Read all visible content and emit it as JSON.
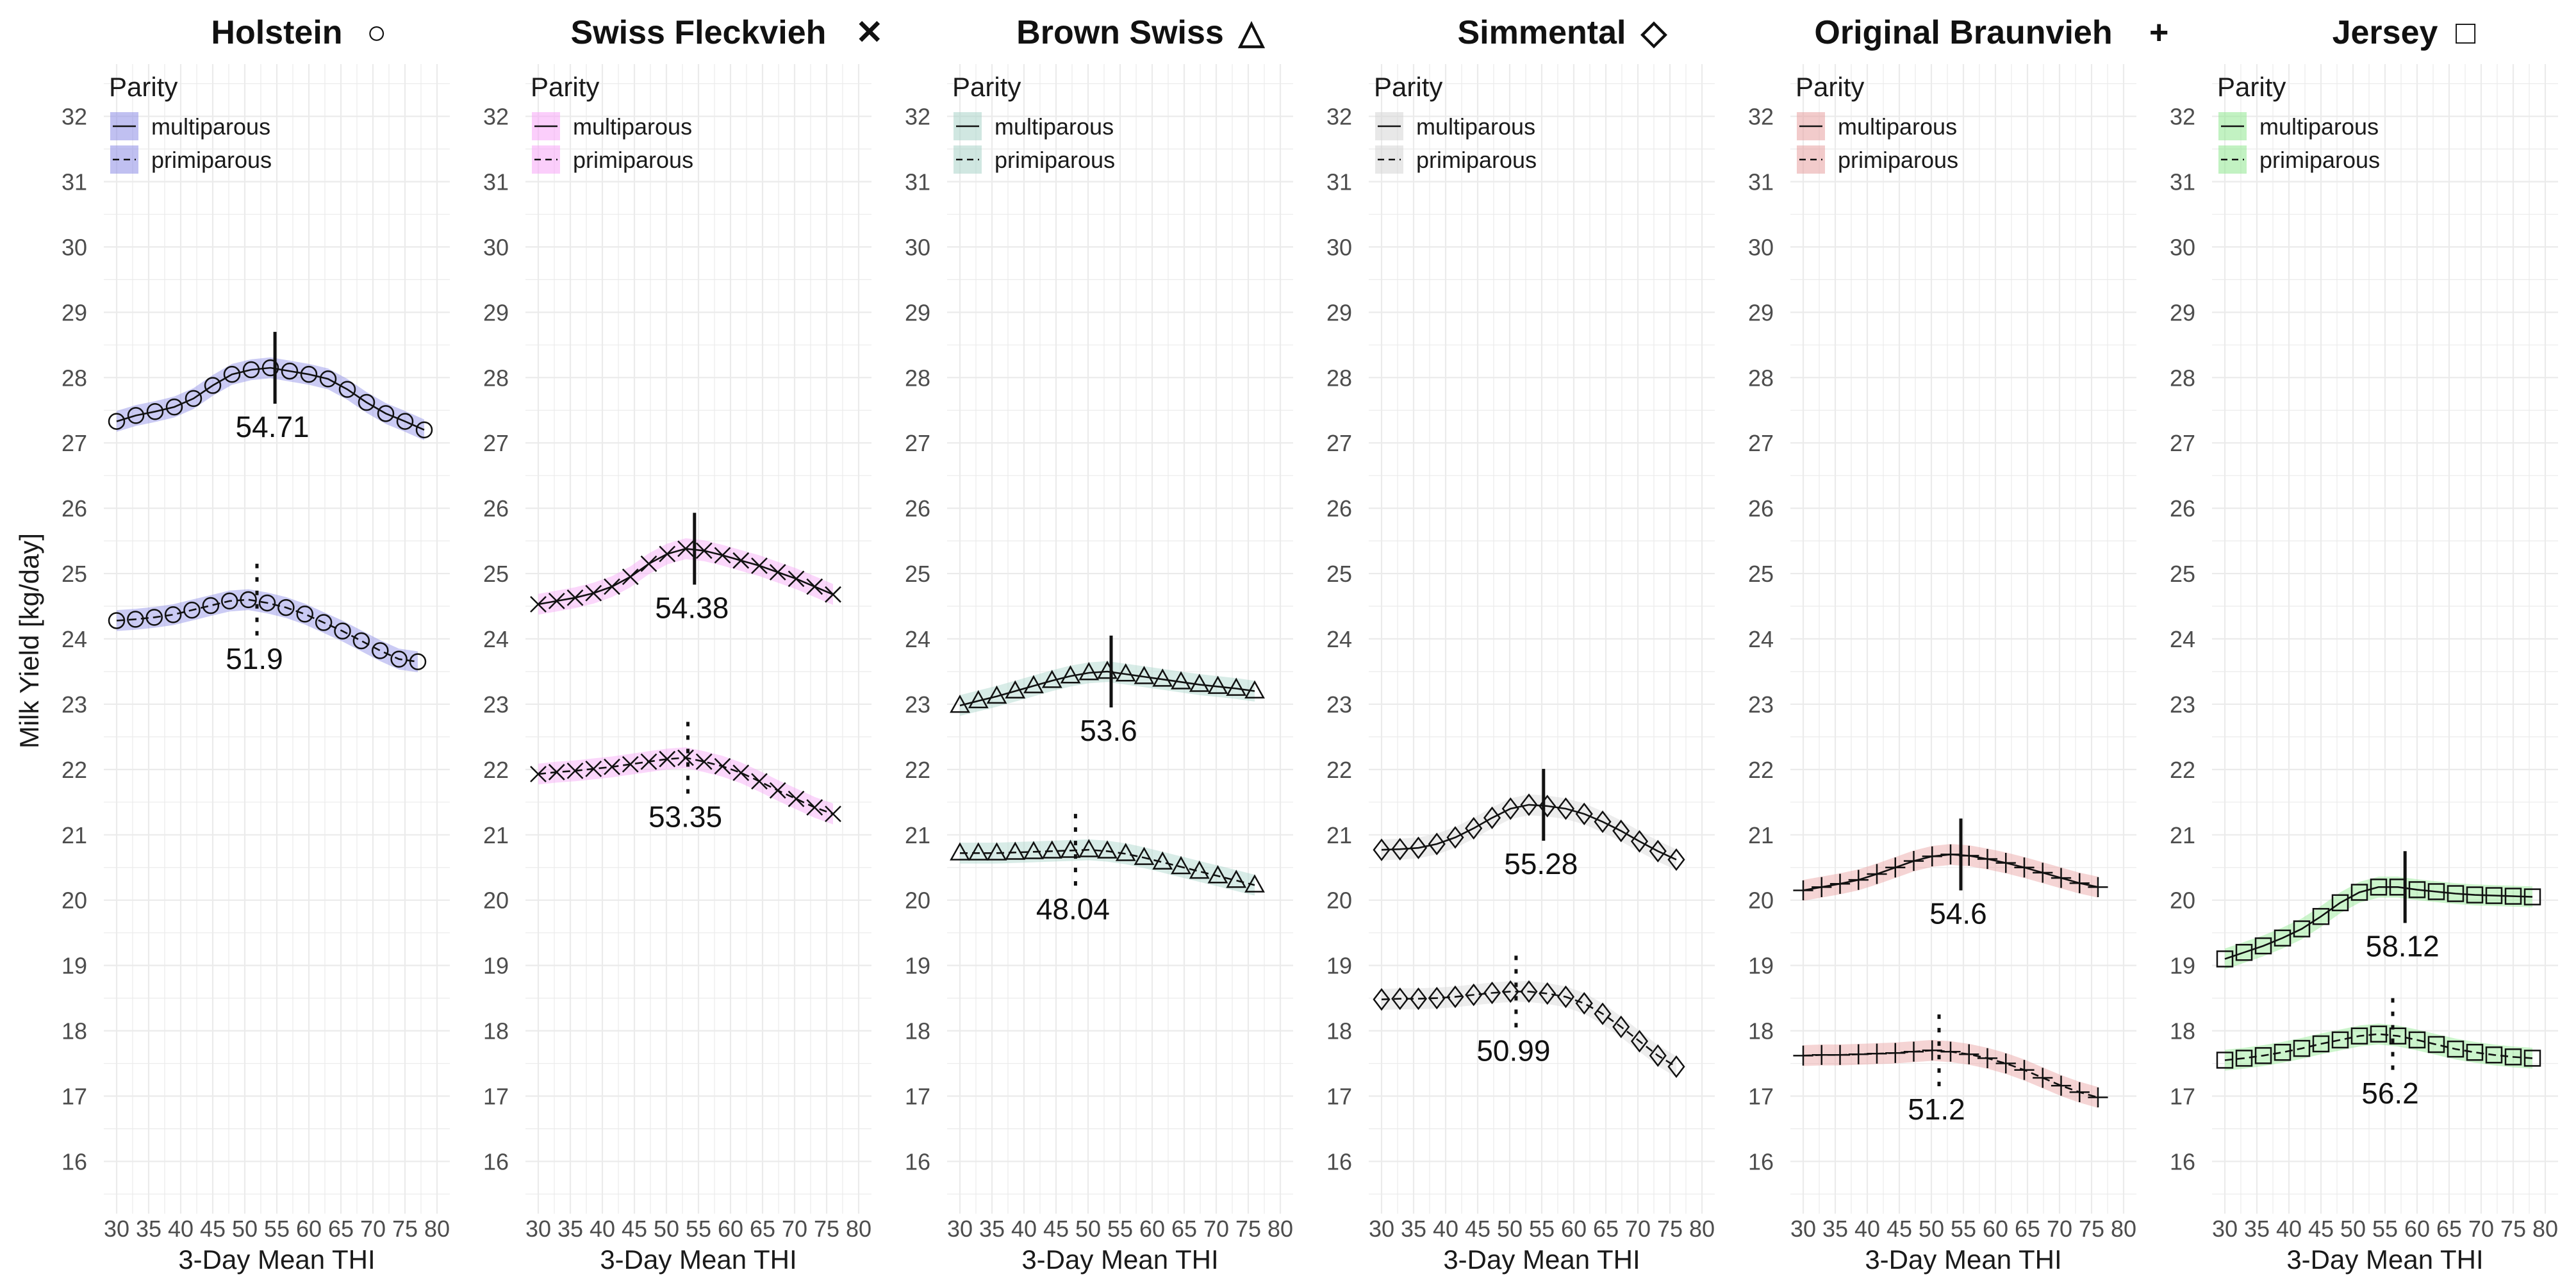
{
  "chart_data": {
    "type": "line",
    "ylabel": "Milk Yield [kg/day]",
    "xlabel": "3-Day Mean THI",
    "xlim": [
      28,
      82
    ],
    "ylim": [
      15.2,
      32.8
    ],
    "x_ticks": [
      30,
      35,
      40,
      45,
      50,
      55,
      60,
      65,
      70,
      75,
      80
    ],
    "y_ticks": [
      16,
      17,
      18,
      19,
      20,
      21,
      22,
      23,
      24,
      25,
      26,
      27,
      28,
      29,
      30,
      31,
      32
    ],
    "x": [
      30,
      33,
      36,
      39,
      42,
      45,
      48,
      51,
      54,
      57,
      60,
      63,
      66,
      69,
      72,
      75,
      78
    ],
    "legend": {
      "title": "Parity",
      "entries": [
        "multiparous",
        "primiparous"
      ]
    },
    "panels": [
      {
        "title": "Holstein",
        "marker": "circle",
        "symbol": "○",
        "fill": "#8c8ce6",
        "series": [
          {
            "name": "multiparous",
            "x_end": 78,
            "values": [
              27.33,
              27.42,
              27.48,
              27.55,
              27.68,
              27.88,
              28.05,
              28.12,
              28.15,
              28.1,
              28.05,
              27.98,
              27.82,
              27.62,
              27.45,
              27.33,
              27.2
            ],
            "peak": 54.71,
            "peak_label": "54.71"
          },
          {
            "name": "primiparous",
            "x_end": 77,
            "values": [
              24.28,
              24.3,
              24.33,
              24.37,
              24.44,
              24.51,
              24.58,
              24.6,
              24.55,
              24.48,
              24.38,
              24.25,
              24.12,
              23.97,
              23.82,
              23.69,
              23.65
            ],
            "peak": 51.9,
            "peak_label": "51.9"
          }
        ]
      },
      {
        "title": "Swiss Fleckvieh",
        "marker": "x",
        "symbol": "✕",
        "fill": "#f7a6f7",
        "series": [
          {
            "name": "multiparous",
            "x_end": 76,
            "values": [
              24.53,
              24.58,
              24.63,
              24.7,
              24.8,
              24.95,
              25.15,
              25.3,
              25.38,
              25.35,
              25.28,
              25.2,
              25.12,
              25.02,
              24.92,
              24.8,
              24.68
            ],
            "peak": 54.38,
            "peak_label": "54.38"
          },
          {
            "name": "primiparous",
            "x_end": 76,
            "values": [
              21.93,
              21.96,
              21.98,
              22.01,
              22.04,
              22.08,
              22.12,
              22.16,
              22.18,
              22.12,
              22.05,
              21.95,
              21.82,
              21.68,
              21.55,
              21.42,
              21.32
            ],
            "peak": 53.35,
            "peak_label": "53.35"
          }
        ]
      },
      {
        "title": "Brown Swiss",
        "marker": "triangle",
        "symbol": "△",
        "fill": "#a9d4c9",
        "series": [
          {
            "name": "multiparous",
            "x_end": 76,
            "values": [
              22.98,
              23.05,
              23.12,
              23.2,
              23.28,
              23.36,
              23.43,
              23.48,
              23.5,
              23.46,
              23.42,
              23.38,
              23.34,
              23.3,
              23.27,
              23.24,
              23.2
            ],
            "peak": 53.6,
            "peak_label": "53.6"
          },
          {
            "name": "primiparous",
            "x_end": 76,
            "values": [
              20.72,
              20.72,
              20.72,
              20.73,
              20.74,
              20.75,
              20.76,
              20.77,
              20.75,
              20.71,
              20.65,
              20.58,
              20.51,
              20.44,
              20.37,
              20.3,
              20.23
            ],
            "peak": 48.04,
            "peak_label": "48.04"
          }
        ]
      },
      {
        "title": "Simmental",
        "marker": "diamond",
        "symbol": "◇",
        "fill": "#d6d6d6",
        "series": [
          {
            "name": "multiparous",
            "x_end": 76,
            "values": [
              20.77,
              20.78,
              20.8,
              20.86,
              20.96,
              21.1,
              21.26,
              21.4,
              21.46,
              21.44,
              21.4,
              21.32,
              21.2,
              21.06,
              20.9,
              20.75,
              20.62
            ],
            "peak": 55.28,
            "peak_label": "55.28"
          },
          {
            "name": "primiparous",
            "x_end": 76,
            "values": [
              18.48,
              18.49,
              18.49,
              18.5,
              18.52,
              18.55,
              18.58,
              18.6,
              18.6,
              18.57,
              18.52,
              18.42,
              18.26,
              18.06,
              17.84,
              17.62,
              17.45
            ],
            "peak": 50.99,
            "peak_label": "50.99"
          }
        ]
      },
      {
        "title": "Original Braunvieh",
        "marker": "plus",
        "symbol": "+",
        "fill": "#e8a0a0",
        "series": [
          {
            "name": "multiparous",
            "x_end": 76,
            "values": [
              20.15,
              20.2,
              20.25,
              20.31,
              20.4,
              20.5,
              20.6,
              20.67,
              20.7,
              20.68,
              20.63,
              20.57,
              20.5,
              20.42,
              20.34,
              20.26,
              20.2
            ],
            "peak": 54.6,
            "peak_label": "54.6"
          },
          {
            "name": "primiparous",
            "x_end": 76,
            "values": [
              17.62,
              17.63,
              17.63,
              17.64,
              17.65,
              17.66,
              17.68,
              17.7,
              17.68,
              17.64,
              17.58,
              17.5,
              17.4,
              17.28,
              17.16,
              17.06,
              16.98
            ],
            "peak": 51.2,
            "peak_label": "51.2"
          }
        ]
      },
      {
        "title": "Jersey",
        "marker": "square",
        "symbol": "□",
        "fill": "#8fe88f",
        "series": [
          {
            "name": "multiparous",
            "x_end": 78,
            "values": [
              19.1,
              19.2,
              19.3,
              19.42,
              19.56,
              19.75,
              19.96,
              20.12,
              20.2,
              20.2,
              20.16,
              20.13,
              20.1,
              20.08,
              20.07,
              20.06,
              20.05
            ],
            "peak": 58.12,
            "peak_label": "58.12"
          },
          {
            "name": "primiparous",
            "x_end": 78,
            "values": [
              17.55,
              17.58,
              17.62,
              17.67,
              17.73,
              17.8,
              17.86,
              17.92,
              17.95,
              17.92,
              17.86,
              17.79,
              17.72,
              17.67,
              17.63,
              17.6,
              17.58
            ],
            "peak": 56.2,
            "peak_label": "56.2"
          }
        ]
      }
    ]
  }
}
